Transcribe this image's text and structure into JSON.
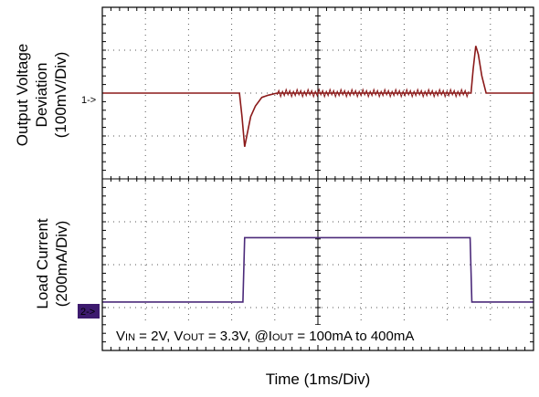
{
  "chart_data": {
    "type": "line",
    "title": "",
    "xlabel": "Time  (1ms/Div)",
    "x_divisions": 10,
    "y_divisions": 8,
    "grid": true,
    "x_unit": "ms",
    "x_per_div": 1,
    "channels": [
      {
        "id": "ch1",
        "marker": "1->",
        "ylabel_lines": [
          "Output Voltage",
          "Deviation",
          "(100mV/Div)"
        ],
        "y_unit": "mV",
        "y_per_div": 100,
        "ref_div": 6.0,
        "color": "#8b1a1a",
        "x": [
          0,
          3.18,
          3.24,
          3.3,
          3.36,
          3.44,
          3.55,
          3.7,
          3.85,
          4.05,
          4.4,
          5.0,
          8.55,
          8.6,
          8.66,
          8.72,
          8.8,
          8.9,
          9.0,
          10
        ],
        "y": [
          0,
          0,
          -55,
          -125,
          -95,
          -55,
          -30,
          -10,
          -5,
          0,
          0,
          0,
          0,
          55,
          110,
          90,
          40,
          0,
          0,
          0
        ]
      },
      {
        "id": "ch2",
        "marker": "2->",
        "ylabel_lines": [
          "Load Current",
          "(200mA/Div)"
        ],
        "y_unit": "mA",
        "y_per_div": 200,
        "ref_div": 0.63,
        "color": "#4b2a7a",
        "x": [
          0,
          3.26,
          3.3,
          8.53,
          8.57,
          10
        ],
        "y": [
          100,
          100,
          400,
          400,
          100,
          100
        ]
      }
    ],
    "annotation": "V_IN = 2V, V_OUT = 3.3V, @I_OUT = 100mA to 400mA"
  },
  "annotation_parts": {
    "v1": "V",
    "v1_sub": "IN",
    "v1_rest": " = 2V, V",
    "v2_sub": "OUT",
    "v2_rest": " = 3.3V, @I",
    "i_sub": "OUT",
    "i_rest": " = 100mA to 400mA"
  }
}
